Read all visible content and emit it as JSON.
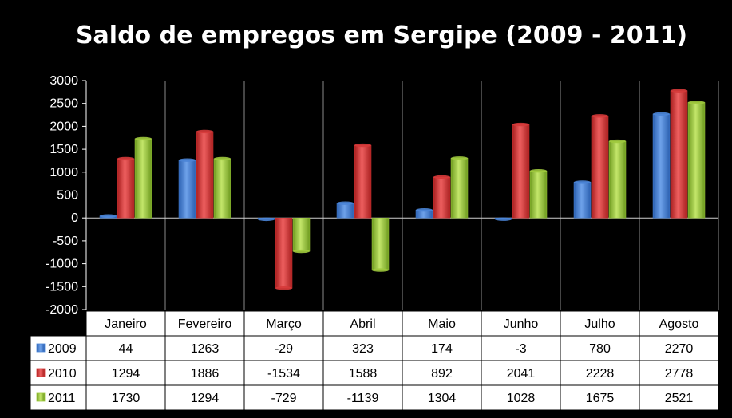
{
  "chart_data": {
    "type": "bar",
    "title": "Saldo de empregos em Sergipe (2009 - 2011)",
    "categories": [
      "Janeiro",
      "Fevereiro",
      "Março",
      "Abril",
      "Maio",
      "Junho",
      "Julho",
      "Agosto"
    ],
    "series": [
      {
        "name": "2009",
        "values": [
          44,
          1263,
          -29,
          323,
          174,
          -3,
          780,
          2270
        ],
        "color": "#4a84d6"
      },
      {
        "name": "2010",
        "values": [
          1294,
          1886,
          -1534,
          1588,
          892,
          2041,
          2228,
          2778
        ],
        "color": "#d63a3a"
      },
      {
        "name": "2011",
        "values": [
          1730,
          1294,
          -729,
          -1139,
          1304,
          1028,
          1675,
          2521
        ],
        "color": "#9ec93d"
      }
    ],
    "yticks": [
      "3000",
      "2500",
      "2000",
      "1500",
      "1000",
      "500",
      "0",
      "-500",
      "-1000",
      "-1500",
      "-2000"
    ],
    "ylim": [
      -2000,
      3000
    ],
    "grid": "vertical",
    "legend": "data-table"
  }
}
